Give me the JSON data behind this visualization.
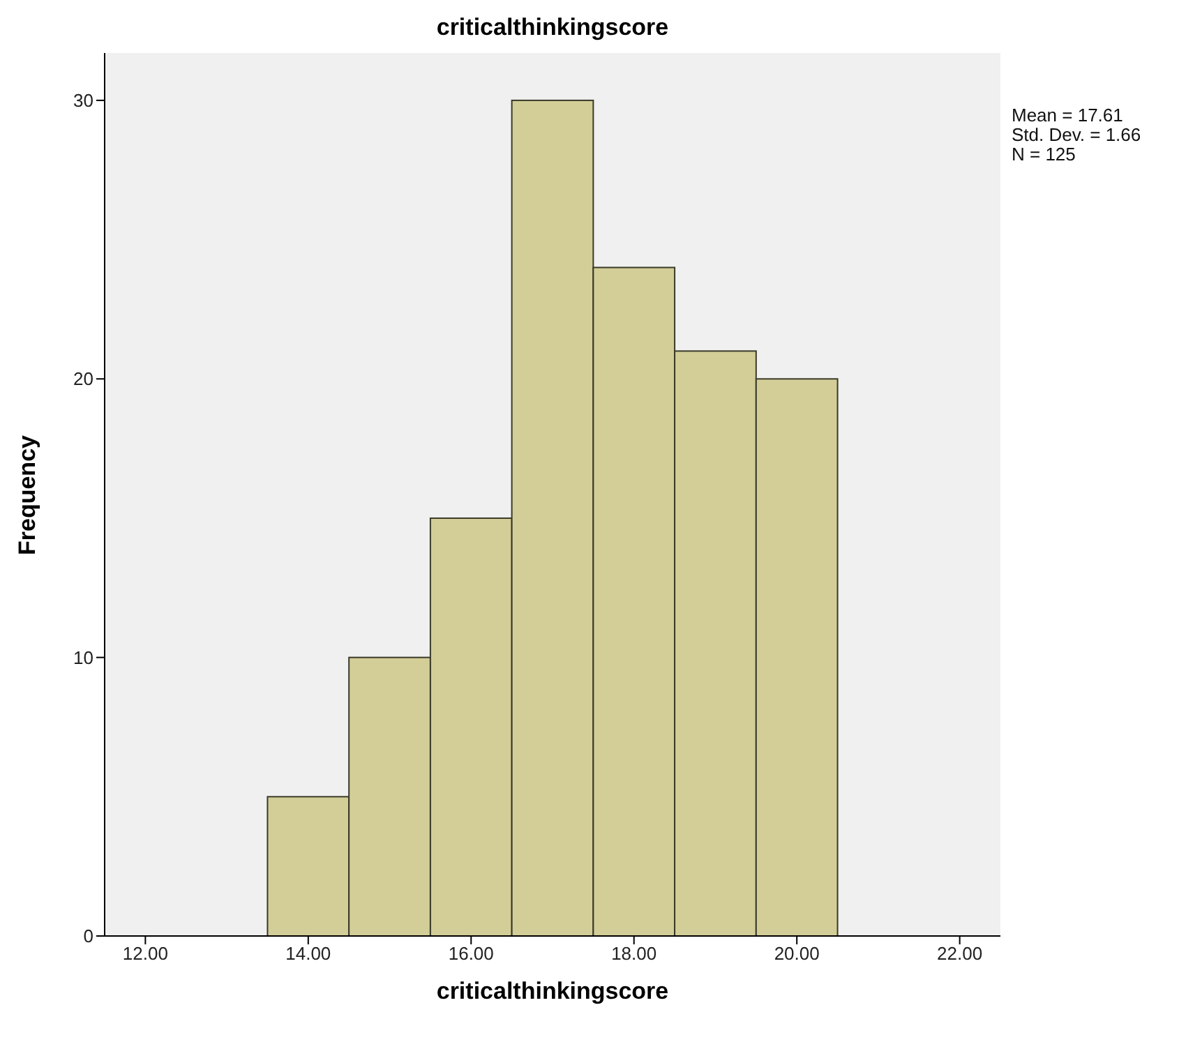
{
  "chart_data": {
    "type": "histogram",
    "title": "criticalthinkingscore",
    "xlabel": "criticalthinkingscore",
    "ylabel": "Frequency",
    "bins": [
      13.5,
      14.5,
      15.5,
      16.5,
      17.5,
      18.5,
      19.5,
      20.5
    ],
    "values": [
      5,
      10,
      15,
      30,
      24,
      21,
      20
    ],
    "color": "#d3ce97",
    "xlim": [
      11.5,
      22.5
    ],
    "xticks": [
      {
        "value": 12,
        "label": "12.00"
      },
      {
        "value": 14,
        "label": "14.00"
      },
      {
        "value": 16,
        "label": "16.00"
      },
      {
        "value": 18,
        "label": "18.00"
      },
      {
        "value": 20,
        "label": "20.00"
      },
      {
        "value": 22,
        "label": "22.00"
      }
    ],
    "ylim": [
      0,
      31.7
    ],
    "yticks": [
      0,
      10,
      20,
      30
    ],
    "annotations": [
      "Mean = 17.61",
      "Std. Dev. = 1.66",
      "N = 125"
    ]
  }
}
